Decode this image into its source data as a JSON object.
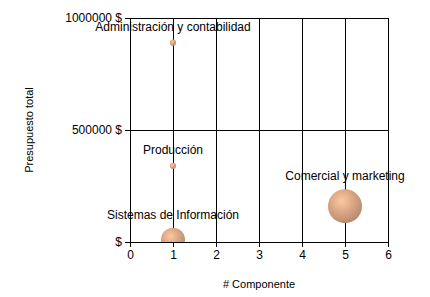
{
  "chart_data": {
    "type": "bubble",
    "x_label": "# Componente",
    "y_label": "Presupuesto total",
    "categories": [
      "Administración y contabilidad",
      "Producción",
      "Comercial y marketing",
      "Sistemas de Información"
    ],
    "x": [
      1,
      1,
      5,
      1
    ],
    "values": [
      890000,
      340000,
      160000,
      10000
    ],
    "sizes": [
      1,
      1,
      30,
      15
    ],
    "color": "#d4a080",
    "xlim": [
      0,
      6
    ],
    "xticks": [
      0,
      1,
      2,
      3,
      4,
      5,
      6
    ],
    "ylim": [
      0,
      1000000
    ],
    "yticks": [
      {
        "value": 0,
        "label": "$"
      },
      {
        "value": 500000,
        "label": "500000 $"
      },
      {
        "value": 1000000,
        "label": "1000000 $"
      }
    ],
    "grid": true
  }
}
